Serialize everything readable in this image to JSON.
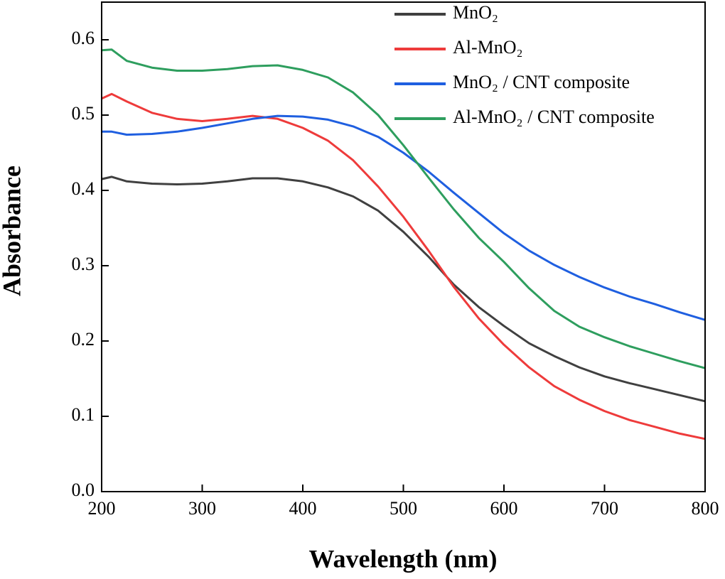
{
  "chart_data": {
    "type": "line",
    "xlabel": "Wavelength (nm)",
    "ylabel": "Absorbance",
    "x": [
      200,
      210,
      225,
      250,
      275,
      300,
      325,
      350,
      375,
      400,
      425,
      450,
      475,
      500,
      525,
      550,
      575,
      600,
      625,
      650,
      675,
      700,
      725,
      750,
      775,
      800
    ],
    "series": [
      {
        "name": "MnO₂",
        "color": "#404040",
        "values": [
          0.415,
          0.418,
          0.412,
          0.409,
          0.408,
          0.409,
          0.412,
          0.416,
          0.416,
          0.412,
          0.404,
          0.392,
          0.373,
          0.345,
          0.312,
          0.275,
          0.245,
          0.22,
          0.197,
          0.18,
          0.165,
          0.153,
          0.144,
          0.136,
          0.128,
          0.12
        ]
      },
      {
        "name": "Al-MnO₂",
        "color": "#ee3b3b",
        "values": [
          0.522,
          0.528,
          0.518,
          0.503,
          0.495,
          0.492,
          0.495,
          0.499,
          0.495,
          0.483,
          0.466,
          0.44,
          0.405,
          0.365,
          0.32,
          0.272,
          0.23,
          0.195,
          0.165,
          0.14,
          0.122,
          0.107,
          0.095,
          0.086,
          0.077,
          0.07
        ]
      },
      {
        "name": "MnO₂ / CNT composite",
        "color": "#1f5fe0",
        "values": [
          0.478,
          0.478,
          0.474,
          0.475,
          0.478,
          0.483,
          0.489,
          0.495,
          0.499,
          0.498,
          0.494,
          0.485,
          0.471,
          0.45,
          0.425,
          0.397,
          0.37,
          0.343,
          0.32,
          0.301,
          0.285,
          0.271,
          0.259,
          0.249,
          0.238,
          0.228
        ]
      },
      {
        "name": "Al-MnO₂ / CNT composite",
        "color": "#2e9e5e",
        "values": [
          0.586,
          0.587,
          0.572,
          0.563,
          0.559,
          0.559,
          0.561,
          0.565,
          0.566,
          0.56,
          0.55,
          0.53,
          0.5,
          0.46,
          0.417,
          0.375,
          0.337,
          0.305,
          0.27,
          0.24,
          0.219,
          0.205,
          0.193,
          0.183,
          0.173,
          0.164
        ]
      }
    ],
    "xlim": [
      200,
      800
    ],
    "ylim": [
      0,
      0.65
    ],
    "xticks": [
      200,
      300,
      400,
      500,
      600,
      700,
      800
    ],
    "yticks": [
      {
        "value": 0,
        "label": "0.0"
      },
      0.1,
      0.2,
      0.3,
      0.4,
      0.5,
      0.6
    ],
    "legend": "upper right",
    "grid": false
  }
}
